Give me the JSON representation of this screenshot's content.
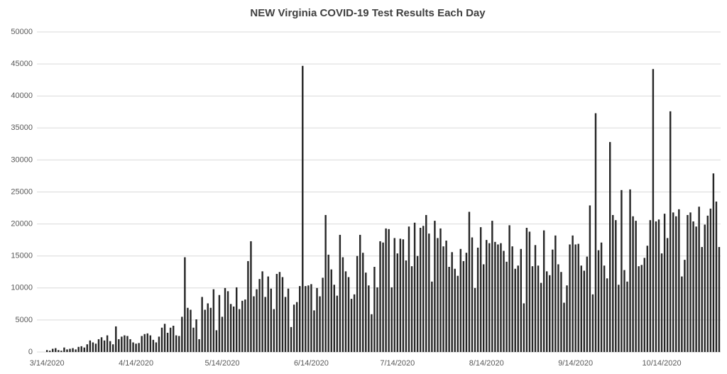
{
  "chart_data": {
    "type": "bar",
    "title": "NEW Virginia COVID-19 Test Results Each Day",
    "categories": [
      null,
      null,
      null,
      "3/14/2020",
      null,
      null,
      null,
      null,
      null,
      null,
      null,
      null,
      null,
      null,
      null,
      null,
      null,
      null,
      null,
      null,
      null,
      null,
      null,
      null,
      null,
      null,
      null,
      null,
      null,
      null,
      null,
      null,
      null,
      null,
      "4/14/2020",
      null,
      null,
      null,
      null,
      null,
      null,
      null,
      null,
      null,
      null,
      null,
      null,
      null,
      null,
      null,
      null,
      null,
      null,
      null,
      null,
      null,
      null,
      null,
      null,
      null,
      null,
      null,
      null,
      null,
      "5/14/2020",
      null,
      null,
      null,
      null,
      null,
      null,
      null,
      null,
      null,
      null,
      null,
      null,
      null,
      null,
      null,
      null,
      null,
      null,
      null,
      null,
      null,
      null,
      null,
      null,
      null,
      null,
      null,
      null,
      null,
      null,
      "6/14/2020",
      null,
      null,
      null,
      null,
      null,
      null,
      null,
      null,
      null,
      null,
      null,
      null,
      null,
      null,
      null,
      null,
      null,
      null,
      null,
      null,
      null,
      null,
      null,
      null,
      null,
      null,
      null,
      null,
      null,
      "7/14/2020",
      null,
      null,
      null,
      null,
      null,
      null,
      null,
      null,
      null,
      null,
      null,
      null,
      null,
      null,
      null,
      null,
      null,
      null,
      null,
      null,
      null,
      null,
      null,
      null,
      null,
      null,
      null,
      null,
      null,
      null,
      "8/14/2020",
      null,
      null,
      null,
      null,
      null,
      null,
      null,
      null,
      null,
      null,
      null,
      null,
      null,
      null,
      null,
      null,
      null,
      null,
      null,
      null,
      null,
      null,
      null,
      null,
      null,
      null,
      null,
      null,
      null,
      null,
      "9/14/2020",
      null,
      null,
      null,
      null,
      null,
      null,
      null,
      null,
      null,
      null,
      null,
      null,
      null,
      null,
      null,
      null,
      null,
      null,
      null,
      null,
      null,
      null,
      null,
      null,
      null,
      null,
      null,
      null,
      null,
      "10/14/2020",
      null,
      null,
      null,
      null,
      null,
      null,
      null,
      null,
      null,
      null,
      null,
      null,
      null,
      null,
      null,
      null,
      null,
      null,
      null,
      null
    ],
    "values": [
      0,
      0,
      0,
      300,
      200,
      500,
      600,
      300,
      200,
      700,
      400,
      500,
      600,
      400,
      800,
      900,
      700,
      1200,
      1800,
      1500,
      1300,
      2000,
      2300,
      1800,
      2600,
      1700,
      1200,
      4000,
      2000,
      2400,
      2600,
      2500,
      2000,
      1500,
      1300,
      1400,
      2500,
      2800,
      2900,
      2600,
      1900,
      1500,
      2400,
      3800,
      4400,
      3000,
      3800,
      4100,
      2600,
      2500,
      5500,
      14800,
      6900,
      6600,
      3800,
      5100,
      2000,
      8600,
      6600,
      7600,
      6900,
      9800,
      3400,
      8900,
      5500,
      10000,
      9500,
      7500,
      7100,
      10100,
      6700,
      8000,
      8200,
      14200,
      17300,
      8700,
      9800,
      11400,
      12600,
      8600,
      11800,
      9900,
      6700,
      12200,
      12500,
      11700,
      8600,
      9900,
      3900,
      7400,
      7800,
      10300,
      44700,
      10300,
      10400,
      10600,
      6500,
      10000,
      8700,
      11600,
      21400,
      15200,
      12900,
      10500,
      8800,
      18300,
      14800,
      12600,
      11700,
      8300,
      9000,
      15000,
      18300,
      15500,
      12400,
      10400,
      5900,
      13300,
      10100,
      17300,
      17100,
      19300,
      19200,
      10100,
      17800,
      15400,
      17700,
      17600,
      14300,
      19600,
      13400,
      20200,
      15000,
      19400,
      19700,
      21400,
      18500,
      11000,
      20500,
      17800,
      19300,
      16500,
      17400,
      13300,
      15600,
      13000,
      11900,
      16100,
      14200,
      15500,
      21900,
      17900,
      10000,
      16300,
      19500,
      13700,
      17500,
      17000,
      20500,
      17200,
      16800,
      17000,
      15800,
      14100,
      19800,
      16500,
      13000,
      13500,
      16100,
      7600,
      19400,
      18800,
      13400,
      16700,
      13500,
      10800,
      19000,
      12600,
      12000,
      16000,
      18200,
      13700,
      12500,
      7700,
      10400,
      16800,
      18200,
      16800,
      16900,
      13500,
      12700,
      14900,
      22900,
      9000,
      37300,
      15900,
      17100,
      13500,
      11500,
      32800,
      21400,
      20600,
      10500,
      25300,
      12800,
      11000,
      25400,
      21200,
      20500,
      13400,
      13600,
      14700,
      16600,
      20600,
      44200,
      20400,
      20700,
      15400,
      21600,
      17800,
      37600,
      21800,
      21200,
      22300,
      11800,
      14400,
      21400,
      21800,
      20400,
      19600,
      22700,
      16400,
      19900,
      21300,
      22400,
      27900,
      23500,
      16400
    ],
    "color": "#262626",
    "ylim": [
      0,
      50000
    ],
    "yticks": [
      0,
      5000,
      10000,
      15000,
      20000,
      25000,
      30000,
      35000,
      40000,
      45000,
      50000
    ],
    "grid": true
  }
}
